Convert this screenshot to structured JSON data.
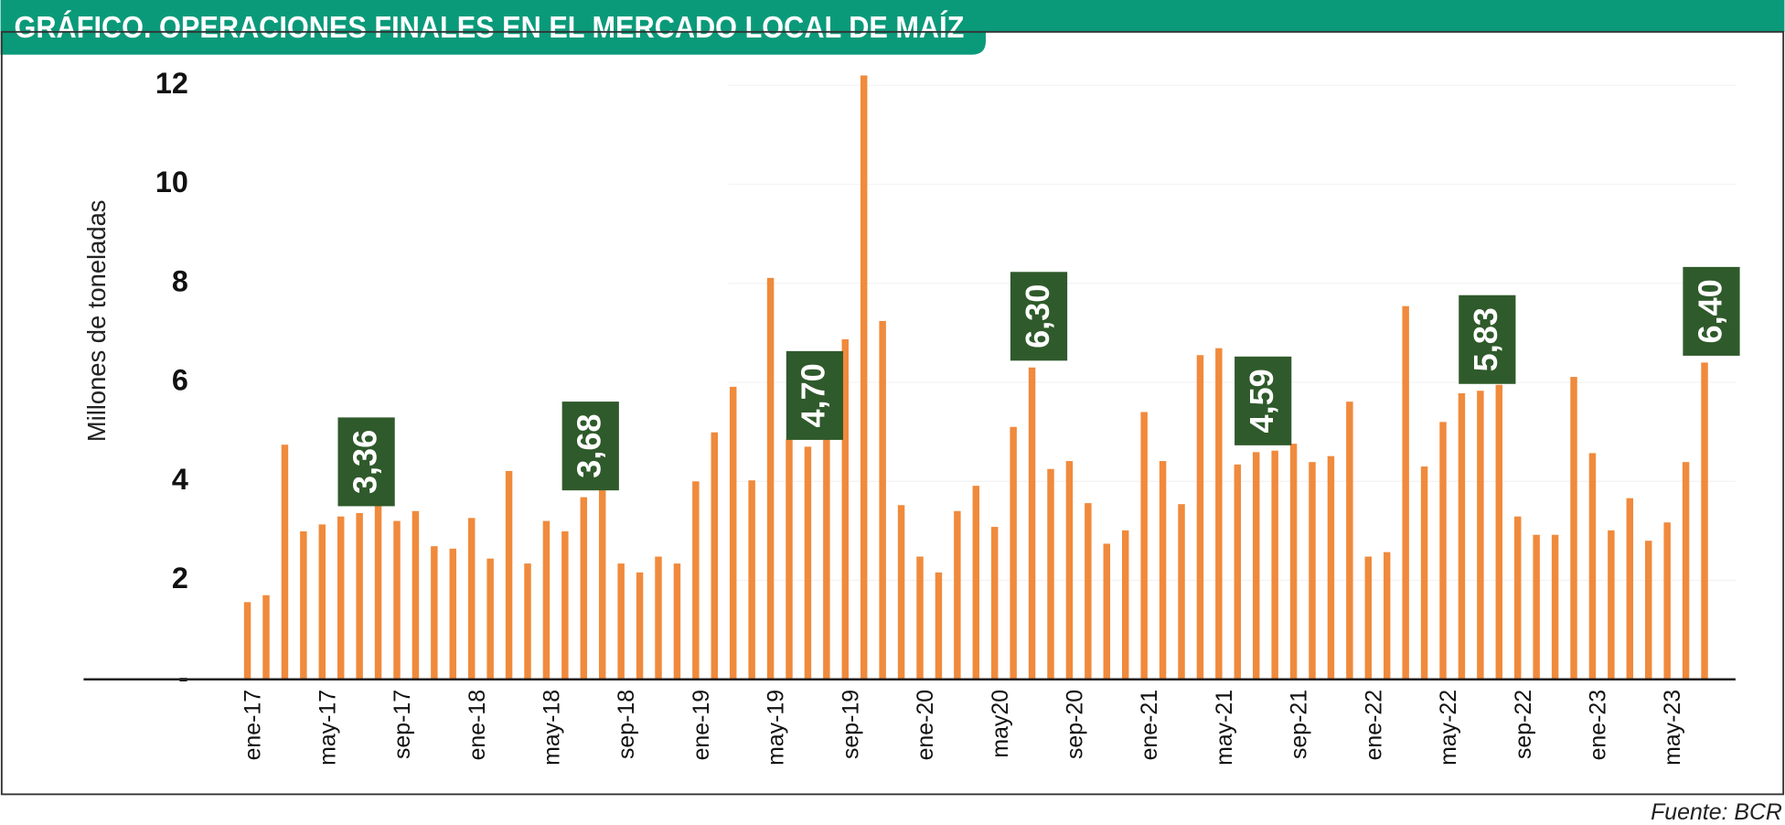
{
  "chart_data": {
    "type": "bar",
    "title": "GRÁFICO. OPERACIONES FINALES EN EL MERCADO LOCAL DE MAÍZ",
    "y_label": "Millones de toneladas",
    "source": "Fuente: BCR",
    "color": "#f08a3c",
    "label_color": "#2f5a2b",
    "categories": [
      "ene-17",
      null,
      null,
      null,
      "may-17",
      null,
      null,
      null,
      "sep-17",
      null,
      null,
      null,
      "ene-18",
      null,
      null,
      null,
      "may-18",
      null,
      null,
      null,
      "sep-18",
      null,
      null,
      null,
      "ene-19",
      null,
      null,
      null,
      "may-19",
      null,
      null,
      null,
      "sep-19",
      null,
      null,
      null,
      "ene-20",
      null,
      null,
      null,
      "may20",
      null,
      null,
      null,
      "sep-20",
      null,
      null,
      null,
      "ene-21",
      null,
      null,
      null,
      "may-21",
      null,
      null,
      null,
      "sep-21",
      null,
      null,
      null,
      "ene-22",
      null,
      null,
      null,
      "may-22",
      null,
      null,
      null,
      "sep-22",
      null,
      null,
      null,
      "ene-23",
      null,
      null,
      null,
      "may-23",
      null,
      null
    ],
    "values": [
      1.56,
      1.7,
      4.74,
      2.99,
      3.13,
      3.29,
      3.36,
      3.54,
      3.2,
      3.4,
      2.69,
      2.64,
      3.26,
      2.44,
      4.21,
      2.34,
      3.2,
      2.99,
      3.68,
      3.86,
      2.34,
      2.16,
      2.48,
      2.34,
      4.0,
      4.99,
      5.91,
      4.02,
      8.11,
      4.85,
      4.7,
      4.97,
      6.87,
      12.2,
      7.24,
      3.52,
      2.48,
      2.16,
      3.4,
      3.91,
      3.08,
      5.1,
      6.3,
      4.25,
      4.41,
      3.56,
      2.74,
      3.01,
      5.4,
      4.41,
      3.54,
      6.55,
      6.69,
      4.34,
      4.59,
      4.62,
      4.76,
      4.39,
      4.51,
      5.61,
      2.48,
      2.57,
      7.54,
      4.3,
      5.2,
      5.78,
      5.83,
      5.95,
      3.29,
      2.92,
      2.92,
      6.11,
      4.57,
      3.01,
      3.66,
      2.8,
      3.17,
      4.39,
      6.4
    ],
    "value_labels": [
      null,
      null,
      null,
      null,
      null,
      null,
      "3,36",
      null,
      null,
      null,
      null,
      null,
      null,
      null,
      null,
      null,
      null,
      null,
      "3,68",
      null,
      null,
      null,
      null,
      null,
      null,
      null,
      null,
      null,
      null,
      null,
      "4,70",
      null,
      null,
      null,
      null,
      null,
      null,
      null,
      null,
      null,
      null,
      null,
      "6,30",
      null,
      null,
      null,
      null,
      null,
      null,
      null,
      null,
      null,
      null,
      null,
      "4,59",
      null,
      null,
      null,
      null,
      null,
      null,
      null,
      null,
      null,
      null,
      null,
      "5,83",
      null,
      null,
      null,
      null,
      null,
      null,
      null,
      null,
      null,
      null,
      null,
      "6,40"
    ],
    "ylim": [
      0,
      12
    ],
    "yticks": [
      {
        "value": 0,
        "label": "-"
      },
      2,
      4,
      6,
      8,
      10,
      12
    ]
  }
}
